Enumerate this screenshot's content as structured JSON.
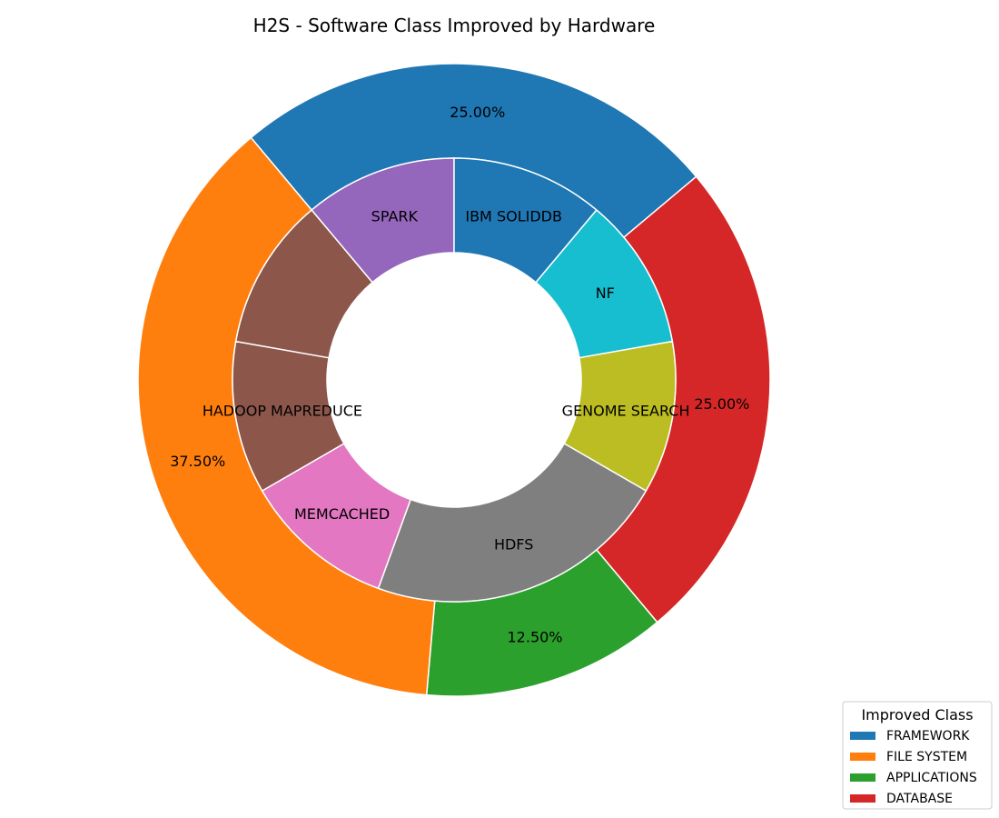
{
  "chart_data": {
    "type": "pie",
    "title": "H2S - Software Class Improved by Hardware",
    "outer": {
      "categories": [
        "FRAMEWORK",
        "DATABASE",
        "APPLICATIONS",
        "FILE SYSTEM"
      ],
      "values": [
        25.0,
        25.0,
        12.5,
        37.5
      ],
      "labels": [
        "25.00%",
        "25.00%",
        "12.50%",
        "37.50%"
      ],
      "colors": [
        "#1f77b4",
        "#d62728",
        "#2ca02c",
        "#ff7f0e"
      ]
    },
    "inner": {
      "categories": [
        "SPARK",
        "IBM SOLIDDB",
        "NF",
        "GENOME SEARCH",
        "HDFS",
        "MEMCACHED",
        "HADOOP MAPREDUCE",
        ""
      ],
      "values": [
        12.5,
        12.5,
        12.5,
        12.5,
        25.0,
        12.5,
        12.5,
        12.5
      ],
      "colors": [
        "#9467bd",
        "#1f77b4",
        "#17becf",
        "#bcbd22",
        "#7f7f7f",
        "#e377c2",
        "#8c564b",
        "#8c564b"
      ]
    },
    "legend": {
      "title": "Improved Class",
      "entries": [
        "FRAMEWORK",
        "FILE SYSTEM",
        "APPLICATIONS",
        "DATABASE"
      ],
      "colors": [
        "#1f77b4",
        "#ff7f0e",
        "#2ca02c",
        "#d62728"
      ],
      "position": "bottom-right"
    }
  }
}
